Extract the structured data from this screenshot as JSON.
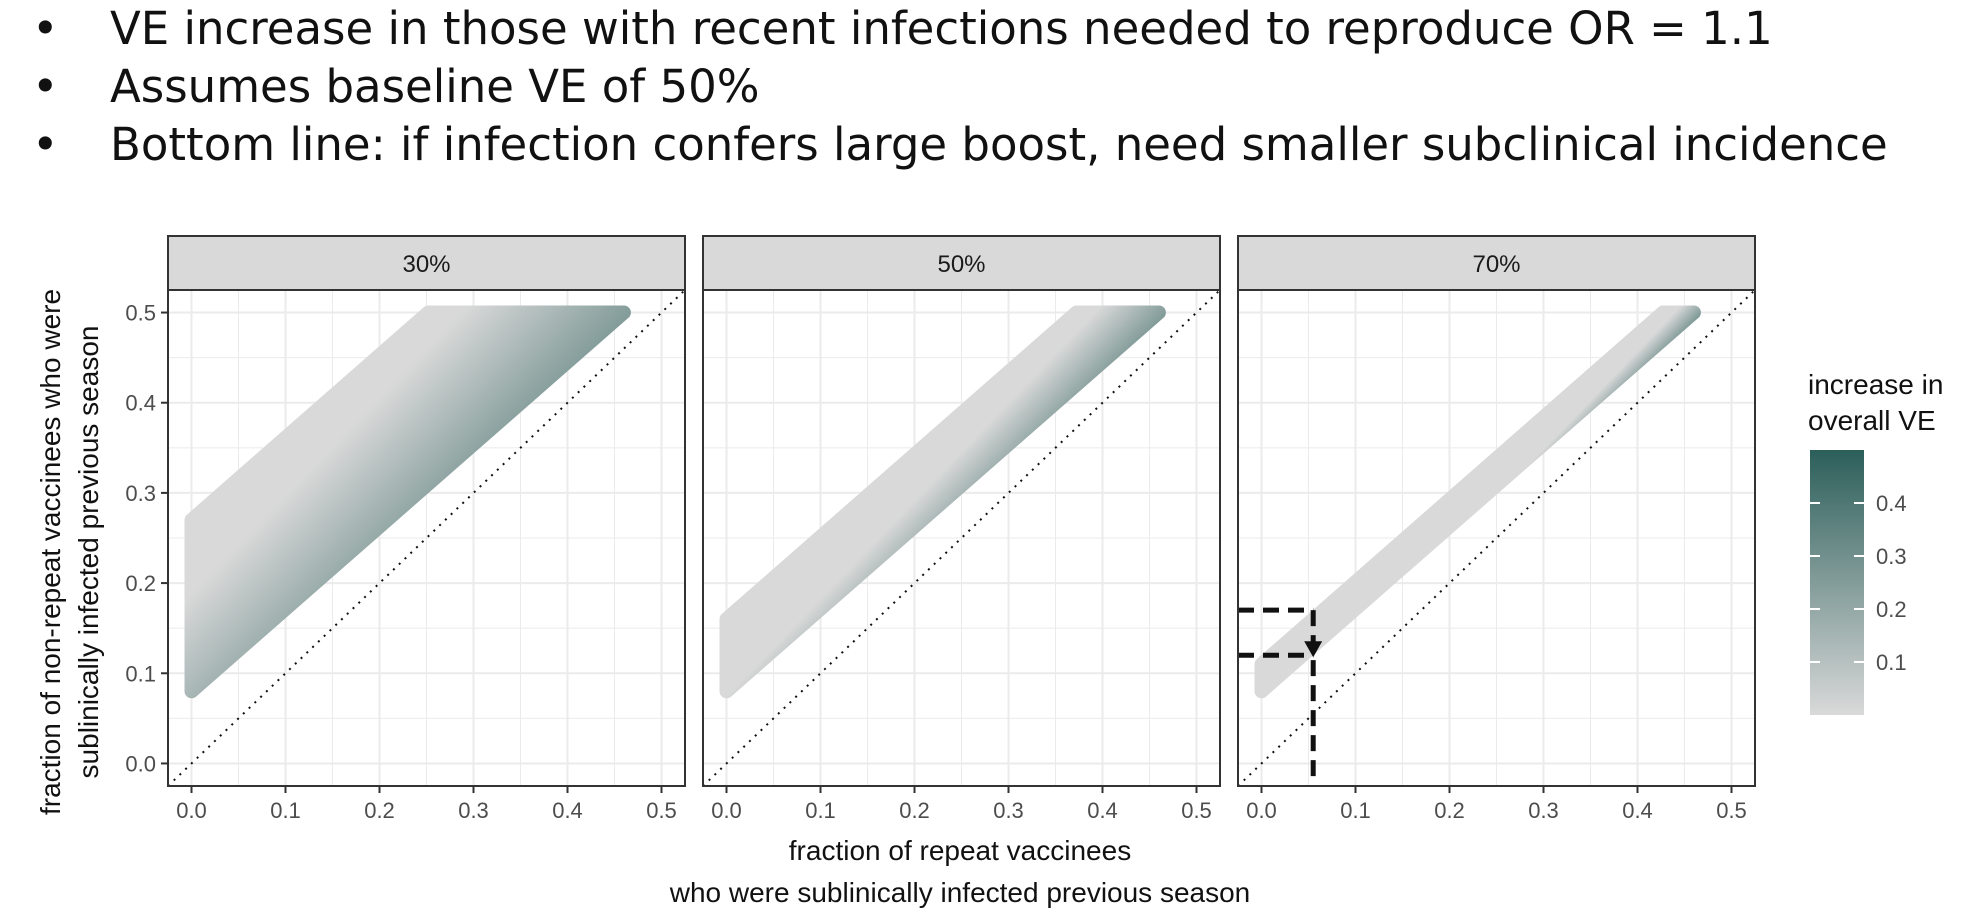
{
  "bullets": [
    "VE increase in those with recent infections needed to reproduce OR = 1.1",
    "Assumes baseline VE of 50%",
    "Bottom line: if infection confers large boost, need smaller subclinical incidence"
  ],
  "chart_data": {
    "type": "heatmap",
    "panels": [
      {
        "label": "30%",
        "band": {
          "start": [
            0.0,
            0.08
          ],
          "end": [
            0.46,
            0.5
          ],
          "width_y": 0.19,
          "width_x": 0.2
        }
      },
      {
        "label": "50%",
        "band": {
          "start": [
            0.0,
            0.08
          ],
          "end": [
            0.46,
            0.5
          ],
          "width_y": 0.08,
          "width_x": 0.08
        }
      },
      {
        "label": "70%",
        "band": {
          "start": [
            0.0,
            0.08
          ],
          "end": [
            0.46,
            0.5
          ],
          "width_y": 0.03,
          "width_x": 0.03
        },
        "annotation": {
          "x": 0.055,
          "y_low": 0.12,
          "y_high": 0.17
        }
      }
    ],
    "xlabel_line1": "fraction of repeat vaccinees",
    "xlabel_line2": "who were sublinically infected previous season",
    "ylabel_line1": "fraction of non-repeat vaccinees who were",
    "ylabel_line2": "sublinically infected previous season",
    "xlim": [
      -0.025,
      0.525
    ],
    "ylim": [
      -0.025,
      0.525
    ],
    "x_ticks": [
      0.0,
      0.1,
      0.2,
      0.3,
      0.4,
      0.5
    ],
    "y_ticks": [
      0.0,
      0.1,
      0.2,
      0.3,
      0.4,
      0.5
    ],
    "x_tick_labels": [
      "0.0",
      "0.1",
      "0.2",
      "0.3",
      "0.4",
      "0.5"
    ],
    "y_tick_labels": [
      "0.0",
      "0.1",
      "0.2",
      "0.3",
      "0.4",
      "0.5"
    ],
    "reference_line": "y = x, dotted",
    "grid": true,
    "legend": {
      "title_line1": "increase in",
      "title_line2": "overall VE",
      "ticks": [
        0.4,
        0.3,
        0.2,
        0.1
      ],
      "tick_labels": [
        "0.4",
        "0.3",
        "0.2",
        "0.1"
      ],
      "range": [
        0.0,
        0.5
      ],
      "low_color": "#d9d9d9",
      "high_color": "#2c5f5a",
      "placement": "right"
    },
    "colors": {
      "strip_fill": "#d9d9d9",
      "grid": "#ebebeb",
      "panel_border": "#333333",
      "text": "#4d4d4d"
    }
  }
}
